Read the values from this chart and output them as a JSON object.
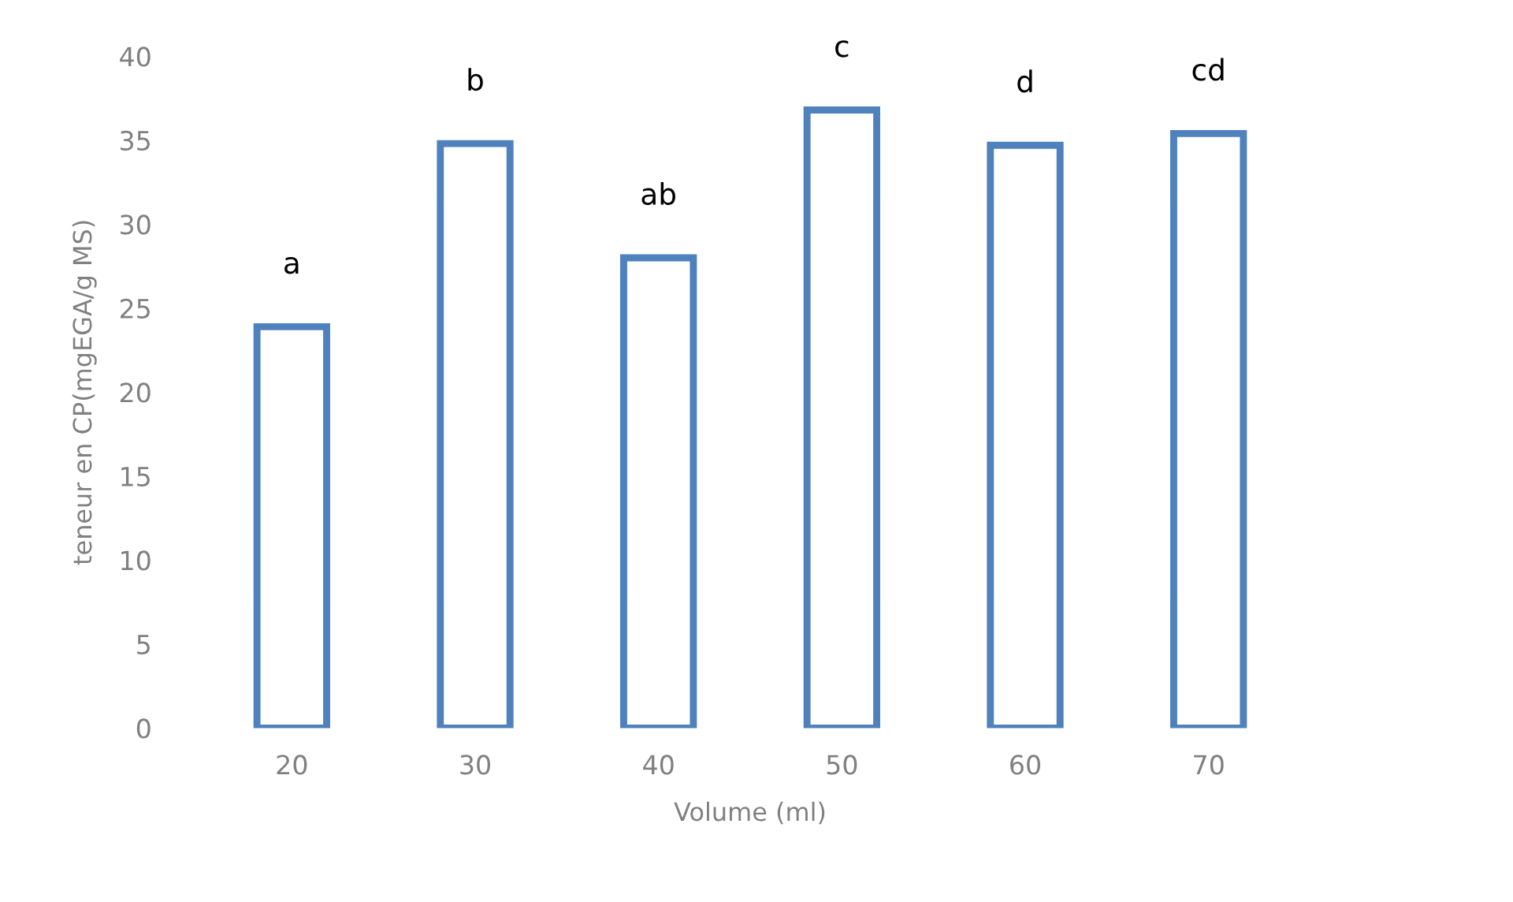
{
  "chart_data": {
    "type": "bar",
    "xlabel": "Volume (ml)",
    "ylabel": "teneur en CP(mgEGA/g MS)",
    "categories": [
      "20",
      "30",
      "40",
      "50",
      "60",
      "70"
    ],
    "values": [
      23.9,
      34.8,
      28,
      36.8,
      34.7,
      35.4
    ],
    "color": "#4f81bd",
    "ylim": [
      0,
      40
    ],
    "yticks": [
      0,
      5,
      10,
      15,
      20,
      25,
      30,
      35,
      40
    ],
    "grid": false,
    "annotations": [
      {
        "text": "a",
        "x": "20",
        "y": 23.9
      },
      {
        "text": "b",
        "x": "30",
        "y": 34.8
      },
      {
        "text": "ab",
        "x": "40",
        "y": 28
      },
      {
        "text": "c",
        "x": "50",
        "y": 36.8
      },
      {
        "text": "d",
        "x": "60",
        "y": 34.7
      },
      {
        "text": "cd",
        "x": "70",
        "y": 35.4
      }
    ]
  }
}
